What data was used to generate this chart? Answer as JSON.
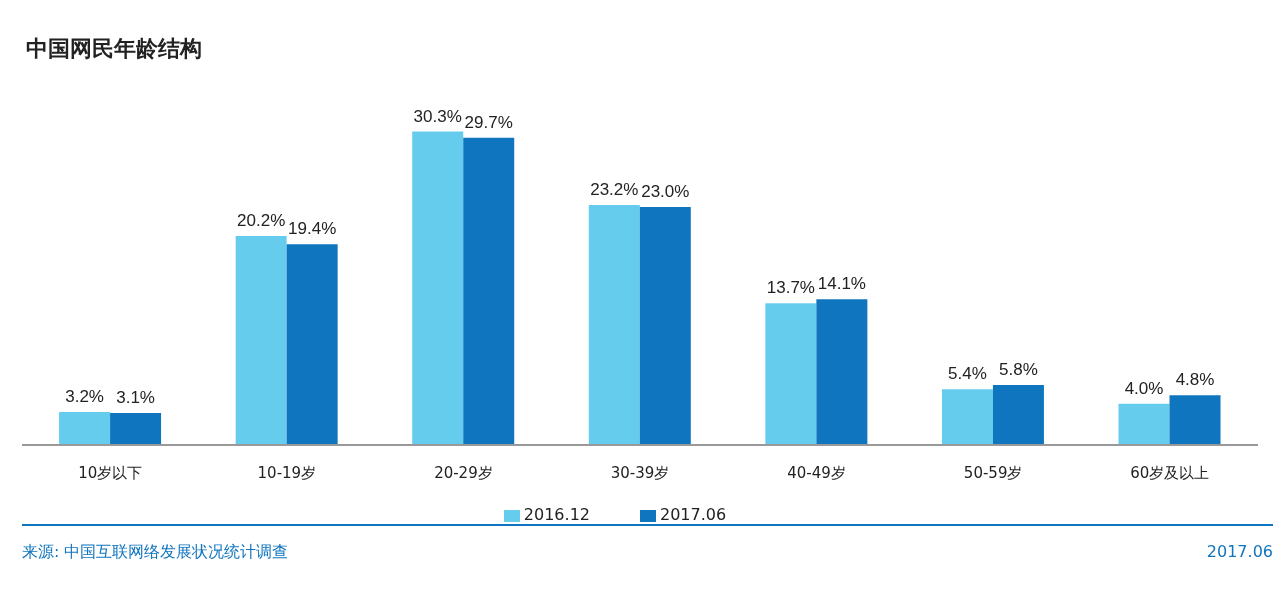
{
  "chart_data": {
    "type": "bar",
    "title": "中国网民年龄结构",
    "categories": [
      "10岁以下",
      "10-19岁",
      "20-29岁",
      "30-39岁",
      "40-49岁",
      "50-59岁",
      "60岁及以上"
    ],
    "series": [
      {
        "name": "2016.12",
        "color": "#66ccee",
        "values": [
          3.2,
          20.2,
          30.3,
          23.2,
          13.7,
          5.4,
          4.0
        ],
        "value_labels": [
          "3.2%",
          "20.2%",
          "30.3%",
          "23.2%",
          "13.7%",
          "5.4%",
          "4.0%"
        ]
      },
      {
        "name": "2017.06",
        "color": "#1075bf",
        "values": [
          3.1,
          19.4,
          29.7,
          23.0,
          14.1,
          5.8,
          4.8
        ],
        "value_labels": [
          "3.1%",
          "19.4%",
          "29.7%",
          "23.0%",
          "14.1%",
          "5.8%",
          "4.8%"
        ]
      }
    ],
    "legend": "bottom",
    "annotations": [
      "来源: 中国互联网络发展状况统计调查",
      "2017.06"
    ]
  }
}
